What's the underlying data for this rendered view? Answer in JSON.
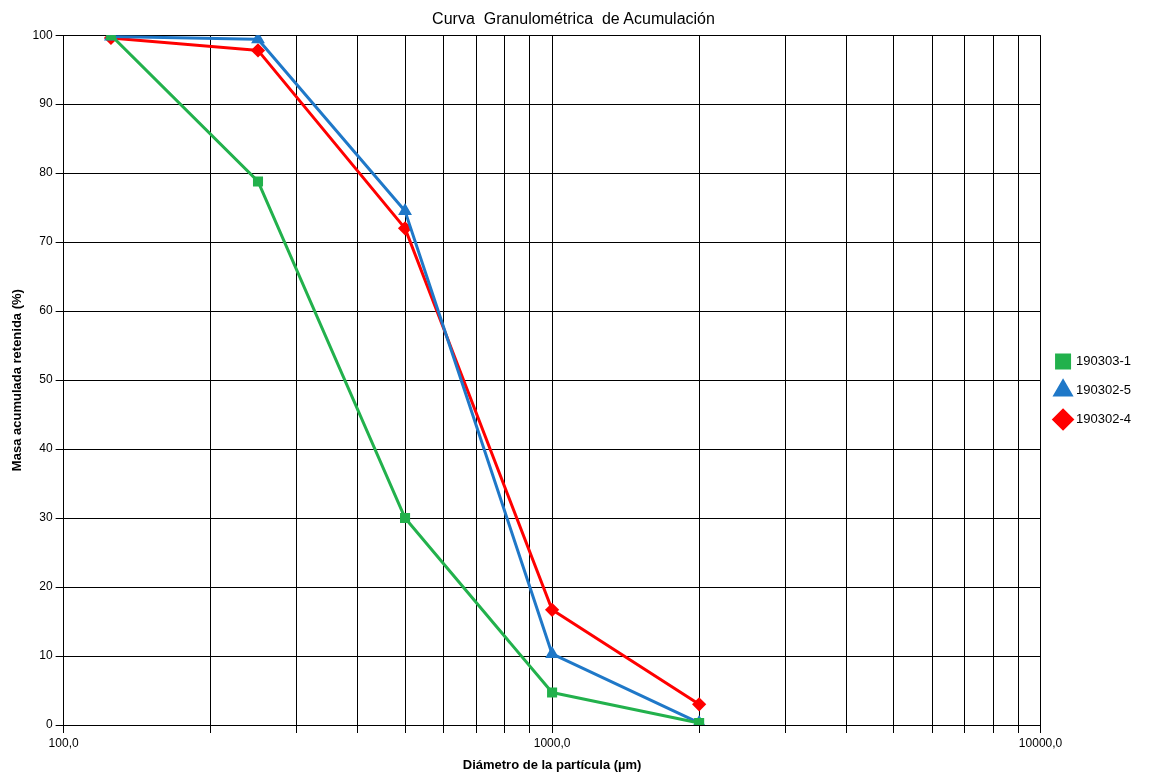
{
  "chart_data": {
    "type": "line",
    "title": "Curva  Granulométrica  de Acumulación",
    "xlabel": "Diámetro de la partícula (µm)",
    "ylabel": "Masa acumulada retenida (%)",
    "x": [
      125,
      250,
      500,
      1000,
      2000
    ],
    "series": [
      {
        "name": "190303-1",
        "color": "#22b14c",
        "marker": "square",
        "values": [
          100,
          78.8,
          30,
          4.7,
          0.3
        ]
      },
      {
        "name": "190302-5",
        "color": "#1f78c8",
        "marker": "triangle",
        "values": [
          99.8,
          99.4,
          74.5,
          10.3,
          0.3
        ]
      },
      {
        "name": "190302-4",
        "color": "#ff0000",
        "marker": "diamond",
        "values": [
          99.6,
          97.8,
          72,
          16.7,
          3.0
        ]
      }
    ],
    "log": "x",
    "xlim": [
      100,
      10000
    ],
    "xticks": [
      {
        "value": 100,
        "label": "100,0"
      },
      {
        "value": 200,
        "label": null
      },
      {
        "value": 300,
        "label": null
      },
      {
        "value": 400,
        "label": null
      },
      {
        "value": 500,
        "label": null
      },
      {
        "value": 600,
        "label": null
      },
      {
        "value": 700,
        "label": null
      },
      {
        "value": 800,
        "label": null
      },
      {
        "value": 900,
        "label": null
      },
      {
        "value": 1000,
        "label": "1000,0"
      },
      {
        "value": 2000,
        "label": null
      },
      {
        "value": 3000,
        "label": null
      },
      {
        "value": 4000,
        "label": null
      },
      {
        "value": 5000,
        "label": null
      },
      {
        "value": 6000,
        "label": null
      },
      {
        "value": 7000,
        "label": null
      },
      {
        "value": 8000,
        "label": null
      },
      {
        "value": 9000,
        "label": null
      },
      {
        "value": 10000,
        "label": "10000,0"
      }
    ],
    "ylim": [
      0,
      100
    ],
    "yticks": [
      0,
      10,
      20,
      30,
      40,
      50,
      60,
      70,
      80,
      90,
      100
    ],
    "grid": true,
    "legend": "right",
    "line_style": "solid"
  }
}
